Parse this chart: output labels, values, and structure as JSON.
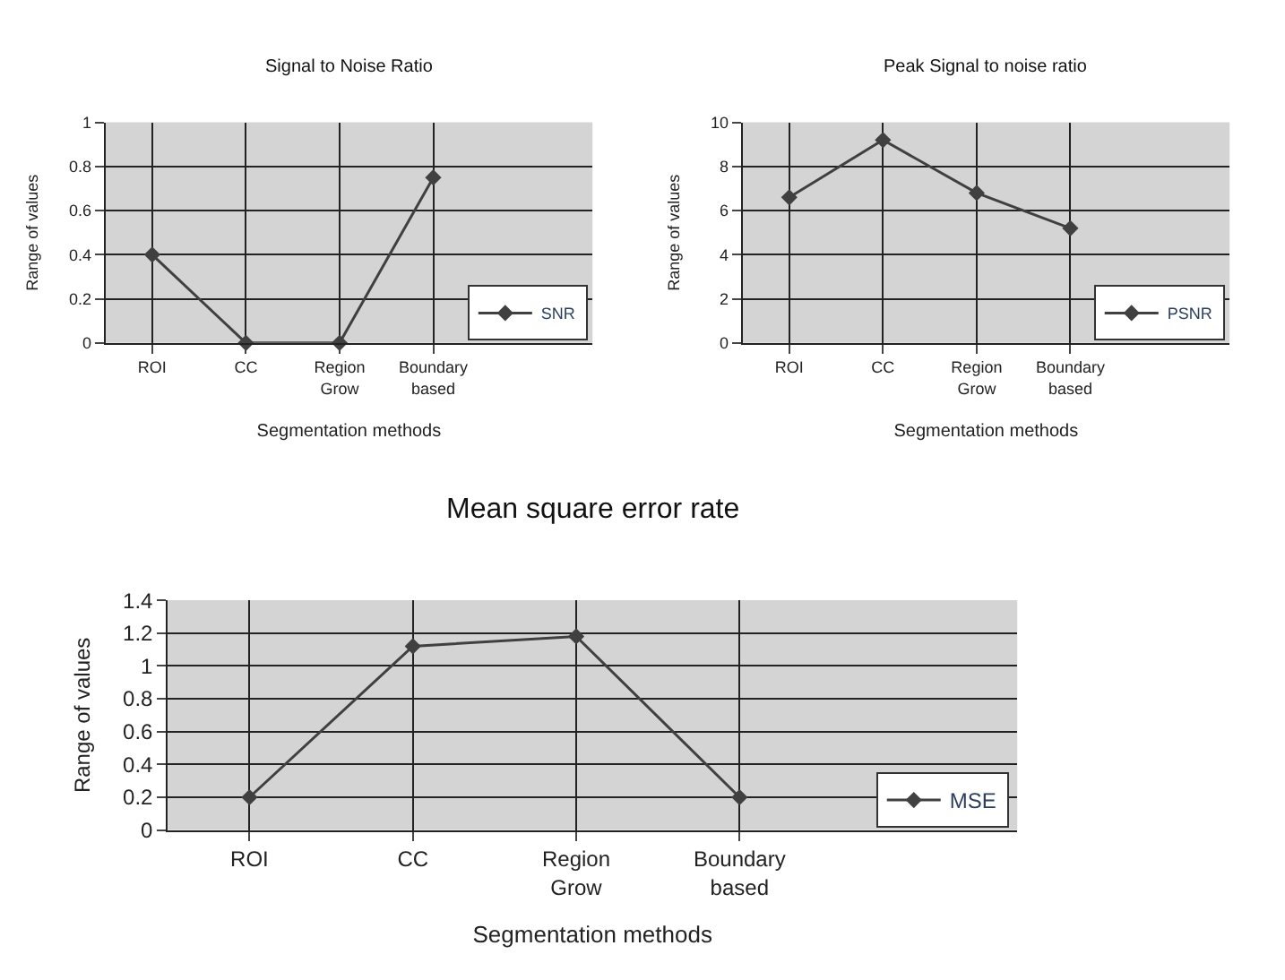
{
  "chart_data": [
    {
      "type": "line",
      "title": "Signal to Noise Ratio",
      "xlabel": "Segmentation methods",
      "ylabel": "Range of values",
      "categories": [
        "ROI",
        "CC",
        "Region Grow",
        "Boundary based"
      ],
      "series": [
        {
          "name": "SNR",
          "color": "#404040",
          "values": [
            0.4,
            0,
            0,
            0.75
          ]
        }
      ],
      "ylim": [
        0,
        1
      ],
      "yticks": [
        0,
        0.2,
        0.4,
        0.6,
        0.8,
        1
      ],
      "grid": true,
      "legend": "bottom right",
      "marker": "diamond",
      "line_style": "solid"
    },
    {
      "type": "line",
      "title": "Peak Signal to noise ratio",
      "xlabel": "Segmentation methods",
      "ylabel": "Range of values",
      "categories": [
        "ROI",
        "CC",
        "Region Grow",
        "Boundary based"
      ],
      "series": [
        {
          "name": "PSNR",
          "color": "#404040",
          "values": [
            6.6,
            9.2,
            6.8,
            5.2
          ]
        }
      ],
      "ylim": [
        0,
        10
      ],
      "yticks": [
        0,
        2,
        4,
        6,
        8,
        10
      ],
      "grid": true,
      "legend": "bottom right",
      "marker": "diamond",
      "line_style": "solid"
    },
    {
      "type": "line",
      "title": "Mean square error rate",
      "xlabel": "Segmentation methods",
      "ylabel": "Range of values",
      "categories": [
        "ROI",
        "CC",
        "Region Grow",
        "Boundary based"
      ],
      "series": [
        {
          "name": "MSE",
          "color": "#404040",
          "values": [
            0.2,
            1.12,
            1.18,
            0.2
          ]
        }
      ],
      "ylim": [
        0,
        1.4
      ],
      "yticks": [
        0,
        0.2,
        0.4,
        0.6,
        0.8,
        1,
        1.2,
        1.4
      ],
      "grid": true,
      "legend": "bottom right",
      "marker": "diamond",
      "line_style": "solid"
    }
  ]
}
